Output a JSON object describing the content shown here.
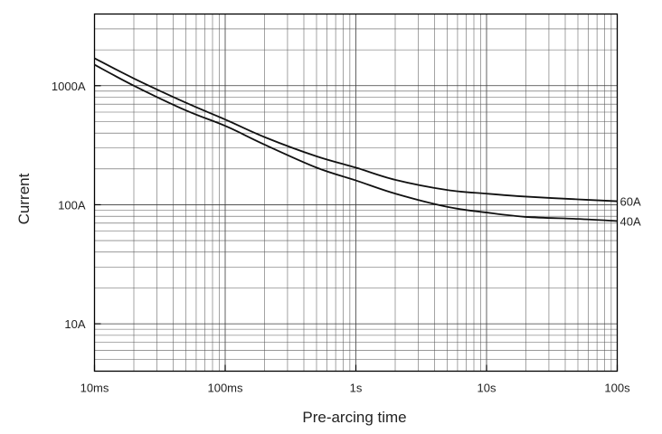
{
  "chart_data": {
    "type": "line",
    "title": "",
    "xlabel": "Pre-arcing time",
    "ylabel": "Current",
    "xscale": "log",
    "yscale": "log",
    "grid": true,
    "xlim": [
      0.01,
      100
    ],
    "ylim": [
      4,
      4000
    ],
    "x_ticks": [
      {
        "value": 0.01,
        "label": "10ms"
      },
      {
        "value": 0.1,
        "label": "100ms"
      },
      {
        "value": 1,
        "label": "1s"
      },
      {
        "value": 10,
        "label": "10s"
      },
      {
        "value": 100,
        "label": "100s"
      }
    ],
    "y_ticks": [
      {
        "value": 10,
        "label": "10A"
      },
      {
        "value": 100,
        "label": "100A"
      },
      {
        "value": 1000,
        "label": "1000A"
      }
    ],
    "series": [
      {
        "name": "60A",
        "points": [
          [
            0.01,
            1700
          ],
          [
            0.02,
            1150
          ],
          [
            0.05,
            720
          ],
          [
            0.1,
            520
          ],
          [
            0.2,
            370
          ],
          [
            0.5,
            255
          ],
          [
            1,
            205
          ],
          [
            2,
            162
          ],
          [
            5,
            133
          ],
          [
            10,
            124
          ],
          [
            20,
            117
          ],
          [
            50,
            111
          ],
          [
            100,
            107
          ]
        ]
      },
      {
        "name": "40A",
        "points": [
          [
            0.01,
            1500
          ],
          [
            0.02,
            1000
          ],
          [
            0.05,
            620
          ],
          [
            0.1,
            460
          ],
          [
            0.2,
            320
          ],
          [
            0.5,
            205
          ],
          [
            1,
            160
          ],
          [
            2,
            124
          ],
          [
            5,
            96
          ],
          [
            10,
            86
          ],
          [
            20,
            79
          ],
          [
            50,
            76
          ],
          [
            100,
            73
          ]
        ]
      }
    ]
  }
}
